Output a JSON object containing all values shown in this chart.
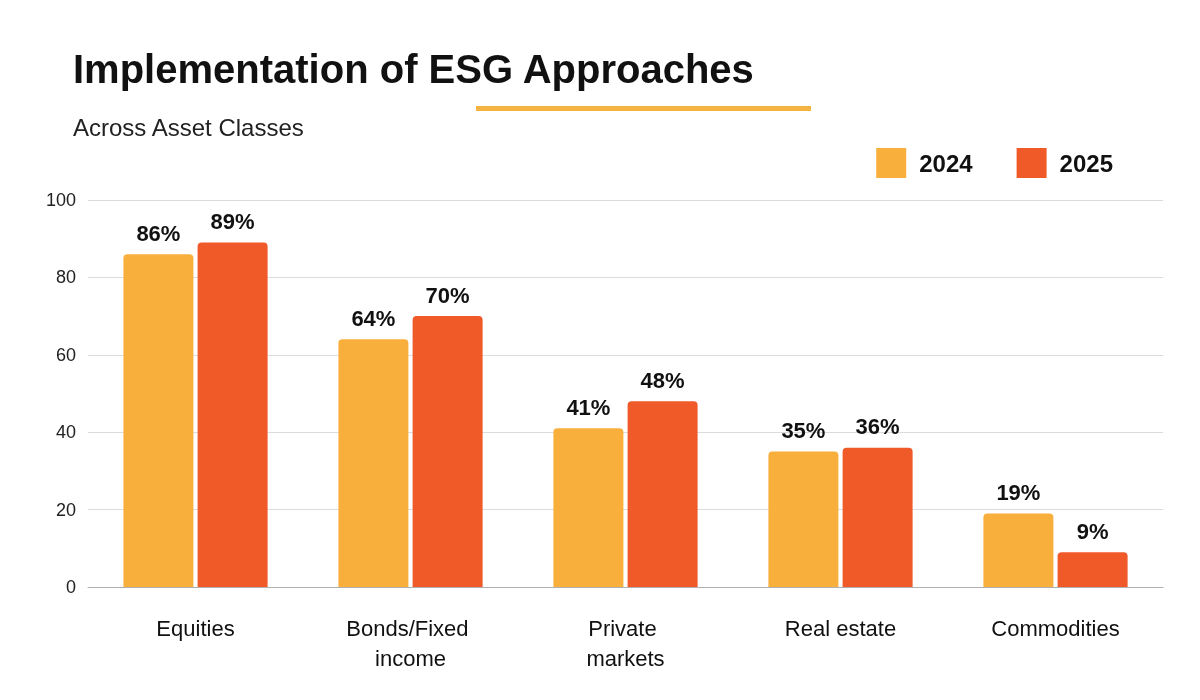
{
  "chart_data": {
    "type": "bar",
    "title": "Implementation of ESG Approaches",
    "subtitle": "Across Asset Classes",
    "categories": [
      "Equities",
      "Bonds/Fixed income",
      "Private markets",
      "Real estate",
      "Commodities"
    ],
    "series": [
      {
        "name": "2024",
        "color": "#f9af3c",
        "values": [
          86,
          64,
          41,
          35,
          19
        ],
        "value_labels": [
          "86%",
          "64%",
          "41%",
          "35%",
          "19%"
        ]
      },
      {
        "name": "2025",
        "color": "#f05a28",
        "values": [
          89,
          70,
          48,
          36,
          9
        ],
        "value_labels": [
          "89%",
          "70%",
          "48%",
          "36%",
          "9%"
        ]
      }
    ],
    "ylim": [
      0,
      100
    ],
    "yticks": [
      0,
      20,
      40,
      60,
      80,
      100
    ],
    "grid": "y",
    "legend": "top right"
  }
}
